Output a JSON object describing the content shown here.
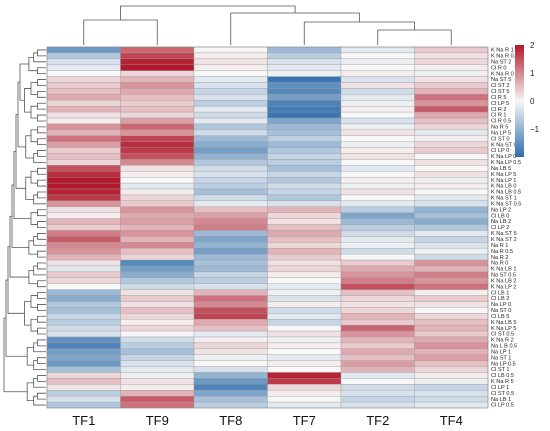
{
  "chart_data": {
    "type": "heatmap",
    "title": "",
    "columns": [
      "TF1",
      "TF9",
      "TF8",
      "TF7",
      "TF2",
      "TF4"
    ],
    "rows": [
      "K Na R 1",
      "K Na R 0.5",
      "Na ST 2",
      "Cl R 0",
      "K Na R 0",
      "Na ST 5",
      "Cl ST 2",
      "Cl ST 5",
      "Cl R 5",
      "Cl LP 5",
      "Cl R 2",
      "Cl R 1",
      "Cl R 0.5",
      "Na R 5",
      "Na LP 5",
      "Cl ST 0",
      "K Na ST 0",
      "Cl LP 0",
      "K Na LP 0",
      "K Na LP 0.5",
      "Na LB 5",
      "K Na LP 5",
      "K Na LP 1",
      "K Na LB 0",
      "K Na LB 0.5",
      "K Na ST 1",
      "K Na ST 0.5",
      "Na LP 2",
      "Cl LB 0",
      "Na LB 2",
      "Cl LP 2",
      "K Na ST 5",
      "K Na ST 2",
      "Na R 1",
      "Na R 0.5",
      "Na R 2",
      "Na R 0",
      "K Na LB 1",
      "Na ST 0.5",
      "K Na LB 2",
      "K Na LP 2",
      "Cl LB 1",
      "Cl LB 2",
      "Na LP 0",
      "Na ST 0",
      "Cl LB 5",
      "K Na LB 5",
      "K Na LP 5",
      "Cl ST 0.5",
      "K Na R 2",
      "Na L B 0.5",
      "Na LP 1",
      "Na ST 1",
      "Na LP 0.5",
      "Cl ST 1",
      "Cl LB 0.5",
      "K Na R 5",
      "Cl LP 1",
      "Cl ST 0.5",
      "Na LB 1",
      "Cl LP 0.5"
    ],
    "values": [
      [
        -1.4,
        1.3,
        0.0,
        -0.9,
        -0.2,
        0.4
      ],
      [
        -0.7,
        1.6,
        0.1,
        -0.6,
        0.0,
        0.2
      ],
      [
        -0.3,
        1.9,
        0.2,
        -0.3,
        -0.1,
        0.3
      ],
      [
        -0.2,
        2.0,
        0.1,
        -0.2,
        0.0,
        0.1
      ],
      [
        0.0,
        0.3,
        0.0,
        -0.1,
        0.1,
        -0.1
      ],
      [
        0.3,
        0.6,
        -0.2,
        -1.9,
        -0.3,
        0.2
      ],
      [
        0.4,
        0.9,
        -0.3,
        -1.5,
        0.2,
        0.4
      ],
      [
        0.5,
        0.7,
        -0.5,
        -1.6,
        -0.4,
        0.6
      ],
      [
        0.7,
        0.5,
        -0.3,
        -1.3,
        -0.2,
        1.2
      ],
      [
        0.3,
        0.4,
        -0.6,
        -1.7,
        -0.1,
        0.9
      ],
      [
        0.6,
        0.5,
        -0.2,
        -1.8,
        0.1,
        1.4
      ],
      [
        0.2,
        0.3,
        -0.4,
        -1.9,
        0.0,
        0.7
      ],
      [
        0.1,
        0.8,
        -0.2,
        -1.2,
        -0.3,
        0.5
      ],
      [
        0.9,
        1.3,
        -0.7,
        -0.9,
        -0.1,
        0.3
      ],
      [
        0.6,
        0.9,
        -0.4,
        -0.8,
        0.2,
        -0.2
      ],
      [
        1.2,
        1.6,
        -0.9,
        -0.6,
        0.0,
        0.1
      ],
      [
        0.8,
        1.8,
        -1.1,
        -0.9,
        -0.1,
        0.3
      ],
      [
        0.4,
        1.7,
        -1.3,
        -0.7,
        0.1,
        0.4
      ],
      [
        0.5,
        1.5,
        -1.0,
        -0.5,
        0.2,
        0.0
      ],
      [
        0.3,
        1.0,
        -0.7,
        -0.6,
        0.0,
        0.2
      ],
      [
        1.5,
        0.2,
        -0.4,
        -0.8,
        -0.2,
        0.0
      ],
      [
        1.8,
        0.1,
        -0.3,
        -0.5,
        0.0,
        0.2
      ],
      [
        2.0,
        0.0,
        -0.5,
        -0.7,
        0.1,
        -0.1
      ],
      [
        2.0,
        -0.2,
        -0.6,
        -0.4,
        -0.1,
        0.1
      ],
      [
        1.9,
        0.1,
        -0.8,
        -0.5,
        0.2,
        0.0
      ],
      [
        1.7,
        0.3,
        -0.4,
        -0.7,
        0.0,
        -0.2
      ],
      [
        0.9,
        0.4,
        -0.2,
        -0.3,
        -0.2,
        -0.3
      ],
      [
        0.2,
        0.9,
        0.5,
        0.6,
        -0.6,
        -1.0
      ],
      [
        0.1,
        0.7,
        0.8,
        0.3,
        -1.2,
        -0.8
      ],
      [
        0.6,
        0.8,
        1.0,
        0.2,
        -0.9,
        -1.1
      ],
      [
        0.4,
        0.6,
        1.1,
        0.5,
        -0.6,
        -0.7
      ],
      [
        1.1,
        0.9,
        -0.9,
        0.7,
        -0.4,
        -0.2
      ],
      [
        1.4,
        0.6,
        -1.2,
        0.5,
        -0.2,
        -0.5
      ],
      [
        1.0,
        1.0,
        -1.0,
        0.3,
        -0.1,
        -0.3
      ],
      [
        0.9,
        0.5,
        -1.3,
        0.6,
        -0.4,
        -0.1
      ],
      [
        0.6,
        0.3,
        -0.9,
        0.4,
        0.0,
        -0.4
      ],
      [
        0.2,
        -1.6,
        -0.8,
        0.2,
        0.4,
        0.9
      ],
      [
        -0.2,
        -1.3,
        -0.9,
        0.3,
        0.7,
        0.6
      ],
      [
        0.4,
        -1.1,
        -0.5,
        0.1,
        0.9,
        1.1
      ],
      [
        0.3,
        -0.7,
        -0.6,
        0.0,
        1.1,
        0.9
      ],
      [
        0.0,
        -0.4,
        -0.3,
        -0.2,
        1.5,
        1.2
      ],
      [
        -0.9,
        0.2,
        0.6,
        -0.1,
        0.5,
        0.1
      ],
      [
        -1.1,
        0.4,
        1.2,
        -0.3,
        0.3,
        0.4
      ],
      [
        -0.7,
        0.2,
        1.0,
        0.1,
        0.2,
        0.2
      ],
      [
        -0.8,
        0.5,
        1.5,
        -0.4,
        0.3,
        0.0
      ],
      [
        -0.5,
        0.3,
        1.6,
        -0.2,
        0.6,
        0.3
      ],
      [
        -0.6,
        0.1,
        0.7,
        -0.5,
        0.4,
        0.5
      ],
      [
        -0.4,
        0.3,
        0.5,
        0.0,
        1.3,
        0.6
      ],
      [
        -0.3,
        0.0,
        -0.2,
        0.2,
        0.9,
        0.4
      ],
      [
        -1.5,
        -0.4,
        0.1,
        -0.1,
        0.6,
        0.7
      ],
      [
        -1.7,
        -0.6,
        0.3,
        0.1,
        0.4,
        0.9
      ],
      [
        -1.3,
        -0.8,
        0.2,
        0.0,
        0.7,
        0.6
      ],
      [
        -1.2,
        -0.5,
        -0.1,
        -0.2,
        0.5,
        0.8
      ],
      [
        -1.4,
        -0.3,
        0.0,
        0.1,
        0.8,
        0.5
      ],
      [
        -0.8,
        -0.2,
        -0.3,
        0.0,
        0.6,
        0.3
      ],
      [
        0.3,
        -0.1,
        -1.0,
        1.9,
        -0.2,
        0.1
      ],
      [
        0.5,
        0.2,
        -1.4,
        1.7,
        0.0,
        -0.1
      ],
      [
        0.2,
        0.1,
        -1.7,
        0.3,
        -0.4,
        -0.5
      ],
      [
        -0.6,
        0.6,
        -1.2,
        0.1,
        -0.3,
        -0.3
      ],
      [
        -0.3,
        1.4,
        -0.8,
        0.0,
        -0.5,
        -0.4
      ],
      [
        -0.7,
        1.2,
        -0.6,
        -0.2,
        -0.3,
        -0.2
      ]
    ],
    "color_scale": {
      "min": -2,
      "max": 2,
      "low_color": "#2f6ead",
      "mid_color": "#f7f7f7",
      "high_color": "#b2182b",
      "ticks": [
        2,
        1,
        0,
        -1
      ]
    }
  }
}
